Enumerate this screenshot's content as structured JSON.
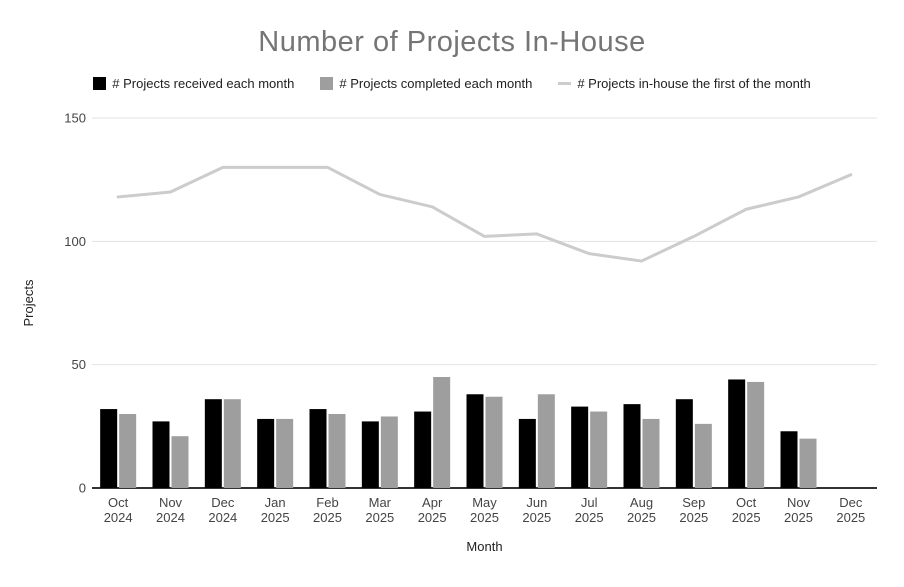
{
  "title": "Number of Projects In-House",
  "legend": {
    "items": [
      {
        "label": "# Projects received each month",
        "color": "#000000",
        "shape": "square"
      },
      {
        "label": "# Projects completed each month",
        "color": "#9e9e9e",
        "shape": "square"
      },
      {
        "label": "# Projects in-house the first of the month",
        "color": "#cccccc",
        "shape": "line"
      }
    ]
  },
  "chart_data": {
    "type": "combo",
    "title": "Number of Projects In-House",
    "xlabel": "Month",
    "ylabel": "Projects",
    "ylim": [
      0,
      150
    ],
    "yticks": [
      0,
      50,
      100,
      150
    ],
    "grid": true,
    "legend_position": "top",
    "categories": [
      "Oct 2024",
      "Nov 2024",
      "Dec 2024",
      "Jan 2025",
      "Feb 2025",
      "Mar 2025",
      "Apr 2025",
      "May 2025",
      "Jun 2025",
      "Jul 2025",
      "Aug 2025",
      "Sep 2025",
      "Oct 2025",
      "Nov 2025",
      "Dec 2025"
    ],
    "series": [
      {
        "name": "# Projects received each month",
        "type": "bar",
        "color": "#000000",
        "values": [
          32,
          27,
          36,
          28,
          32,
          27,
          31,
          38,
          28,
          33,
          34,
          36,
          44,
          23,
          null
        ]
      },
      {
        "name": "# Projects completed each month",
        "type": "bar",
        "color": "#9e9e9e",
        "values": [
          30,
          21,
          36,
          28,
          30,
          29,
          45,
          37,
          38,
          31,
          28,
          26,
          43,
          20,
          null
        ]
      },
      {
        "name": "# Projects in-house the first of the month",
        "type": "line",
        "color": "#cccccc",
        "values": [
          118,
          120,
          130,
          130,
          130,
          119,
          114,
          102,
          103,
          95,
          92,
          102,
          113,
          118,
          127
        ]
      }
    ]
  },
  "colors": {
    "background": "#ffffff",
    "title": "#757575",
    "legend_text": "#212121",
    "tick_label": "#444444",
    "axis_title": "#212121",
    "gridline": "#e3e3e3",
    "baseline": "#333333"
  }
}
